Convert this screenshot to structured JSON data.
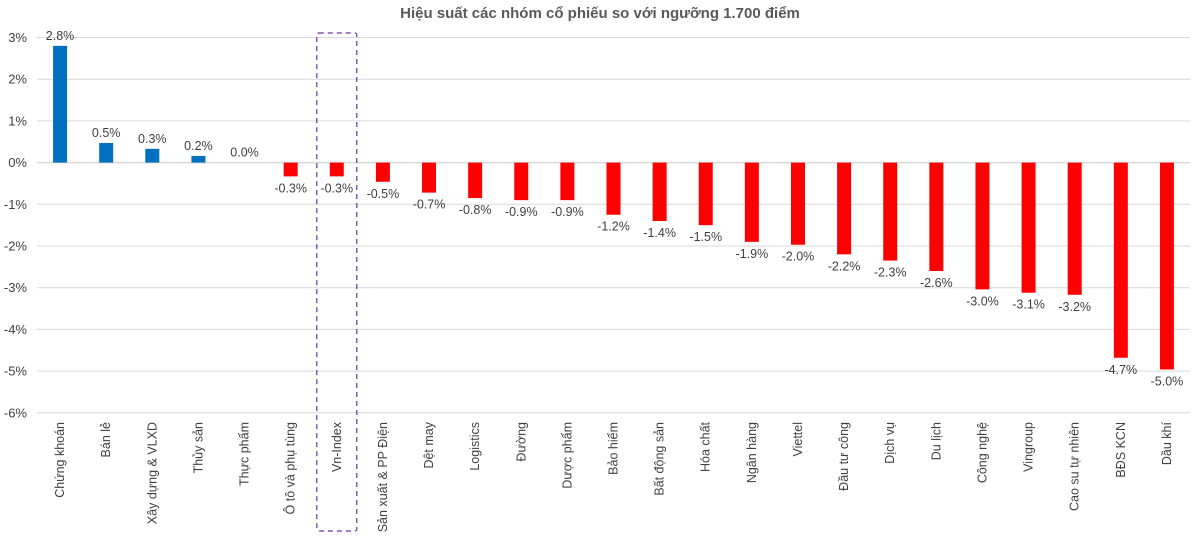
{
  "chart_data": {
    "type": "bar",
    "title": "Hiệu suất các nhóm cổ phiếu so với ngưỡng 1.700 điểm",
    "xlabel": "",
    "ylabel": "",
    "ylim": [
      -6,
      3
    ],
    "yticks": [
      3,
      2,
      1,
      0,
      -1,
      -2,
      -3,
      -4,
      -5,
      -6
    ],
    "ytick_labels": [
      "3%",
      "2%",
      "1%",
      "0%",
      "-1%",
      "-2%",
      "-3%",
      "-4%",
      "-5%",
      "-6%"
    ],
    "grid": true,
    "highlight_category": "Vn-Index",
    "colors": {
      "positive": "#0070c0",
      "negative": "#ff0000",
      "highlight_border": "#7030a0"
    },
    "categories": [
      "Chứng khoán",
      "Bán lẻ",
      "Xây dựng & VLXD",
      "Thủy sản",
      "Thực phẩm",
      "Ô tô và phụ tùng",
      "Vn-Index",
      "Sản xuất & PP Điện",
      "Dệt may",
      "Logistics",
      "Đường",
      "Dược phẩm",
      "Bảo hiểm",
      "Bất động sản",
      "Hóa chất",
      "Ngân hàng",
      "Viettel",
      "Đầu tư công",
      "Dịch vụ",
      "Du lịch",
      "Công nghệ",
      "Vingroup",
      "Cao su tự nhiên",
      "BĐS KCN",
      "Dầu khí"
    ],
    "values": [
      2.8,
      0.47,
      0.33,
      0.16,
      0.0,
      -0.33,
      -0.33,
      -0.46,
      -0.72,
      -0.85,
      -0.9,
      -0.9,
      -1.25,
      -1.4,
      -1.5,
      -1.9,
      -1.97,
      -2.2,
      -2.35,
      -2.6,
      -3.04,
      -3.12,
      -3.17,
      -4.68,
      -4.96
    ],
    "labels": [
      "2.8%",
      "0.5%",
      "0.3%",
      "0.2%",
      "0.0%",
      "-0.3%",
      "-0.3%",
      "-0.5%",
      "-0.7%",
      "-0.8%",
      "-0.9%",
      "-0.9%",
      "-1.2%",
      "-1.4%",
      "-1.5%",
      "-1.9%",
      "-2.0%",
      "-2.2%",
      "-2.3%",
      "-2.6%",
      "-3.0%",
      "-3.1%",
      "-3.2%",
      "-4.7%",
      "-5.0%"
    ]
  }
}
